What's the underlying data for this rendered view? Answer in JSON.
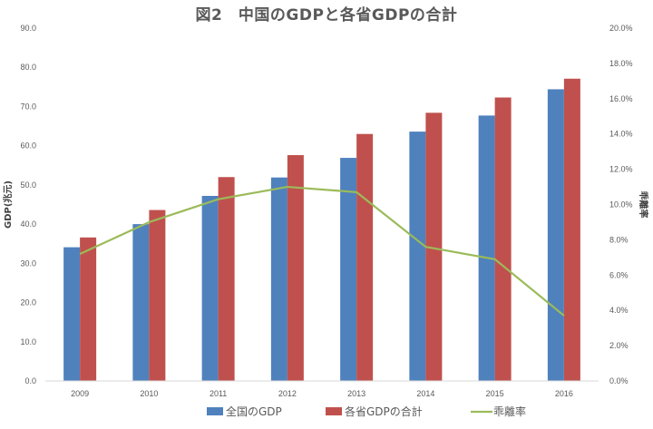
{
  "chart_data": {
    "type": "bar",
    "title": "図2　中国のGDPと各省GDPの合計",
    "categories": [
      "2009",
      "2010",
      "2011",
      "2012",
      "2013",
      "2014",
      "2015",
      "2016"
    ],
    "series": [
      {
        "name": "全国のGDP",
        "type": "bar",
        "axis": "left",
        "color": "#4F81BD",
        "values": [
          34.1,
          40.0,
          47.2,
          51.9,
          56.9,
          63.6,
          67.7,
          74.4
        ]
      },
      {
        "name": "各省GDPの合計",
        "type": "bar",
        "axis": "left",
        "color": "#C0504D",
        "values": [
          36.6,
          43.6,
          52.0,
          57.6,
          63.0,
          68.4,
          72.3,
          77.1
        ]
      },
      {
        "name": "乖離率",
        "type": "line",
        "axis": "right",
        "color": "#9BBB59",
        "values": [
          7.2,
          9.0,
          10.3,
          11.0,
          10.7,
          7.6,
          6.9,
          3.7
        ]
      }
    ],
    "ylabel": "GDP(兆元)",
    "ylabel_right": "乖離率",
    "ylim": [
      0,
      90
    ],
    "yticks": [
      "0.0",
      "10.0",
      "20.0",
      "30.0",
      "40.0",
      "50.0",
      "60.0",
      "70.0",
      "80.0",
      "90.0"
    ],
    "ylim_right": [
      0,
      20
    ],
    "yticks_right": [
      "0.0%",
      "2.0%",
      "4.0%",
      "6.0%",
      "8.0%",
      "10.0%",
      "12.0%",
      "14.0%",
      "16.0%",
      "18.0%",
      "20.0%"
    ],
    "grid": false,
    "legend_position": "bottom"
  }
}
